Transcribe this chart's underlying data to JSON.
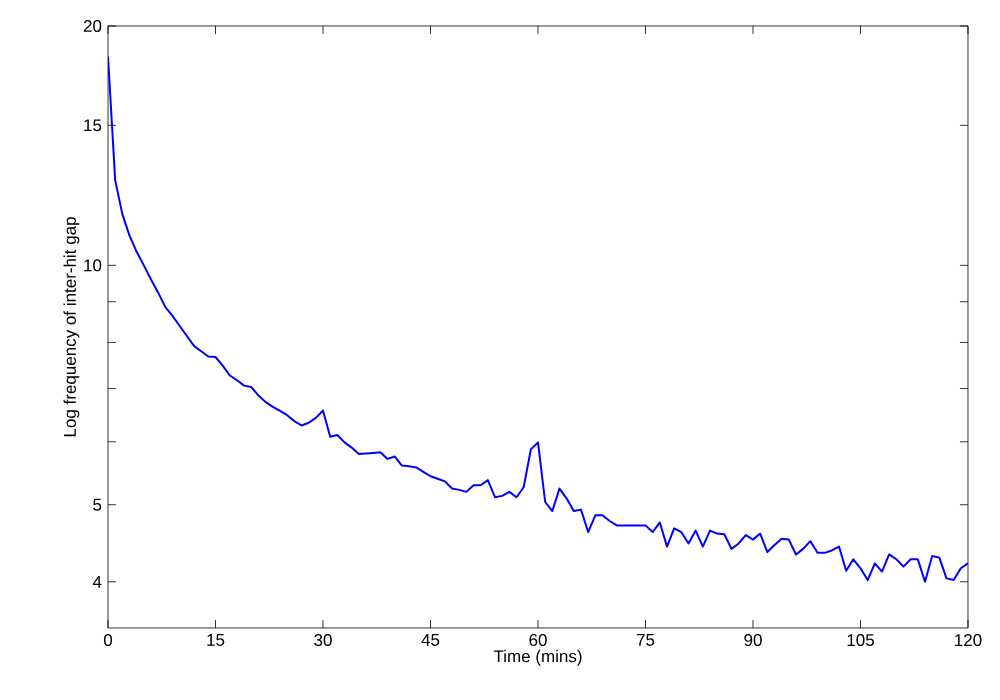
{
  "chart_data": {
    "type": "line",
    "xlabel": "Time (mins)",
    "ylabel": "Log frequency of inter-hit gap",
    "log": "y",
    "color": "#0000ff",
    "x": [
      0,
      1,
      2,
      3,
      4,
      5,
      6,
      7,
      8,
      9,
      10,
      11,
      12,
      13,
      14,
      15,
      16,
      17,
      18,
      19,
      20,
      21,
      22,
      23,
      24,
      25,
      26,
      27,
      28,
      29,
      30,
      31,
      32,
      33,
      34,
      35,
      36,
      37,
      38,
      39,
      40,
      41,
      42,
      43,
      44,
      45,
      46,
      47,
      48,
      49,
      50,
      51,
      52,
      53,
      54,
      55,
      56,
      57,
      58,
      59,
      60,
      61,
      62,
      63,
      64,
      65,
      66,
      67,
      68,
      69,
      70,
      71,
      72,
      73,
      74,
      75,
      76,
      77,
      78,
      79,
      80,
      81,
      82,
      83,
      84,
      85,
      86,
      87,
      88,
      89,
      90,
      91,
      92,
      93,
      94,
      95,
      96,
      97,
      98,
      99,
      100,
      101,
      102,
      103,
      104,
      105,
      106,
      107,
      108,
      109,
      110,
      111,
      112,
      113,
      114,
      115,
      116,
      117,
      118,
      119,
      120
    ],
    "values": [
      18.3,
      12.8,
      11.6,
      10.9,
      10.4,
      10.0,
      9.6,
      9.24,
      8.86,
      8.64,
      8.39,
      8.15,
      7.92,
      7.8,
      7.68,
      7.67,
      7.48,
      7.27,
      7.17,
      7.06,
      7.03,
      6.86,
      6.73,
      6.64,
      6.56,
      6.48,
      6.37,
      6.29,
      6.34,
      6.43,
      6.57,
      6.09,
      6.12,
      5.99,
      5.9,
      5.79,
      5.8,
      5.81,
      5.82,
      5.71,
      5.75,
      5.6,
      5.59,
      5.57,
      5.5,
      5.43,
      5.39,
      5.35,
      5.24,
      5.22,
      5.19,
      5.29,
      5.29,
      5.37,
      5.11,
      5.13,
      5.19,
      5.11,
      5.26,
      5.87,
      5.99,
      5.04,
      4.91,
      5.24,
      5.09,
      4.91,
      4.93,
      4.62,
      4.85,
      4.85,
      4.77,
      4.71,
      4.71,
      4.71,
      4.71,
      4.71,
      4.62,
      4.75,
      4.43,
      4.67,
      4.62,
      4.47,
      4.64,
      4.43,
      4.64,
      4.6,
      4.59,
      4.4,
      4.47,
      4.58,
      4.52,
      4.6,
      4.36,
      4.45,
      4.53,
      4.52,
      4.33,
      4.4,
      4.5,
      4.35,
      4.35,
      4.38,
      4.43,
      4.13,
      4.27,
      4.16,
      4.02,
      4.22,
      4.12,
      4.33,
      4.27,
      4.18,
      4.27,
      4.27,
      4.0,
      4.31,
      4.29,
      4.04,
      4.02,
      4.16,
      4.22
    ],
    "xlim": [
      0,
      120
    ],
    "xticks": [
      0,
      15,
      30,
      45,
      60,
      75,
      90,
      105,
      120
    ],
    "ylim": [
      3.5,
      20
    ],
    "yticks": [
      4,
      5,
      {
        "value": 6,
        "label": null
      },
      {
        "value": 7,
        "label": null
      },
      {
        "value": 8,
        "label": null
      },
      {
        "value": 9,
        "label": null
      },
      10,
      15,
      20
    ]
  }
}
